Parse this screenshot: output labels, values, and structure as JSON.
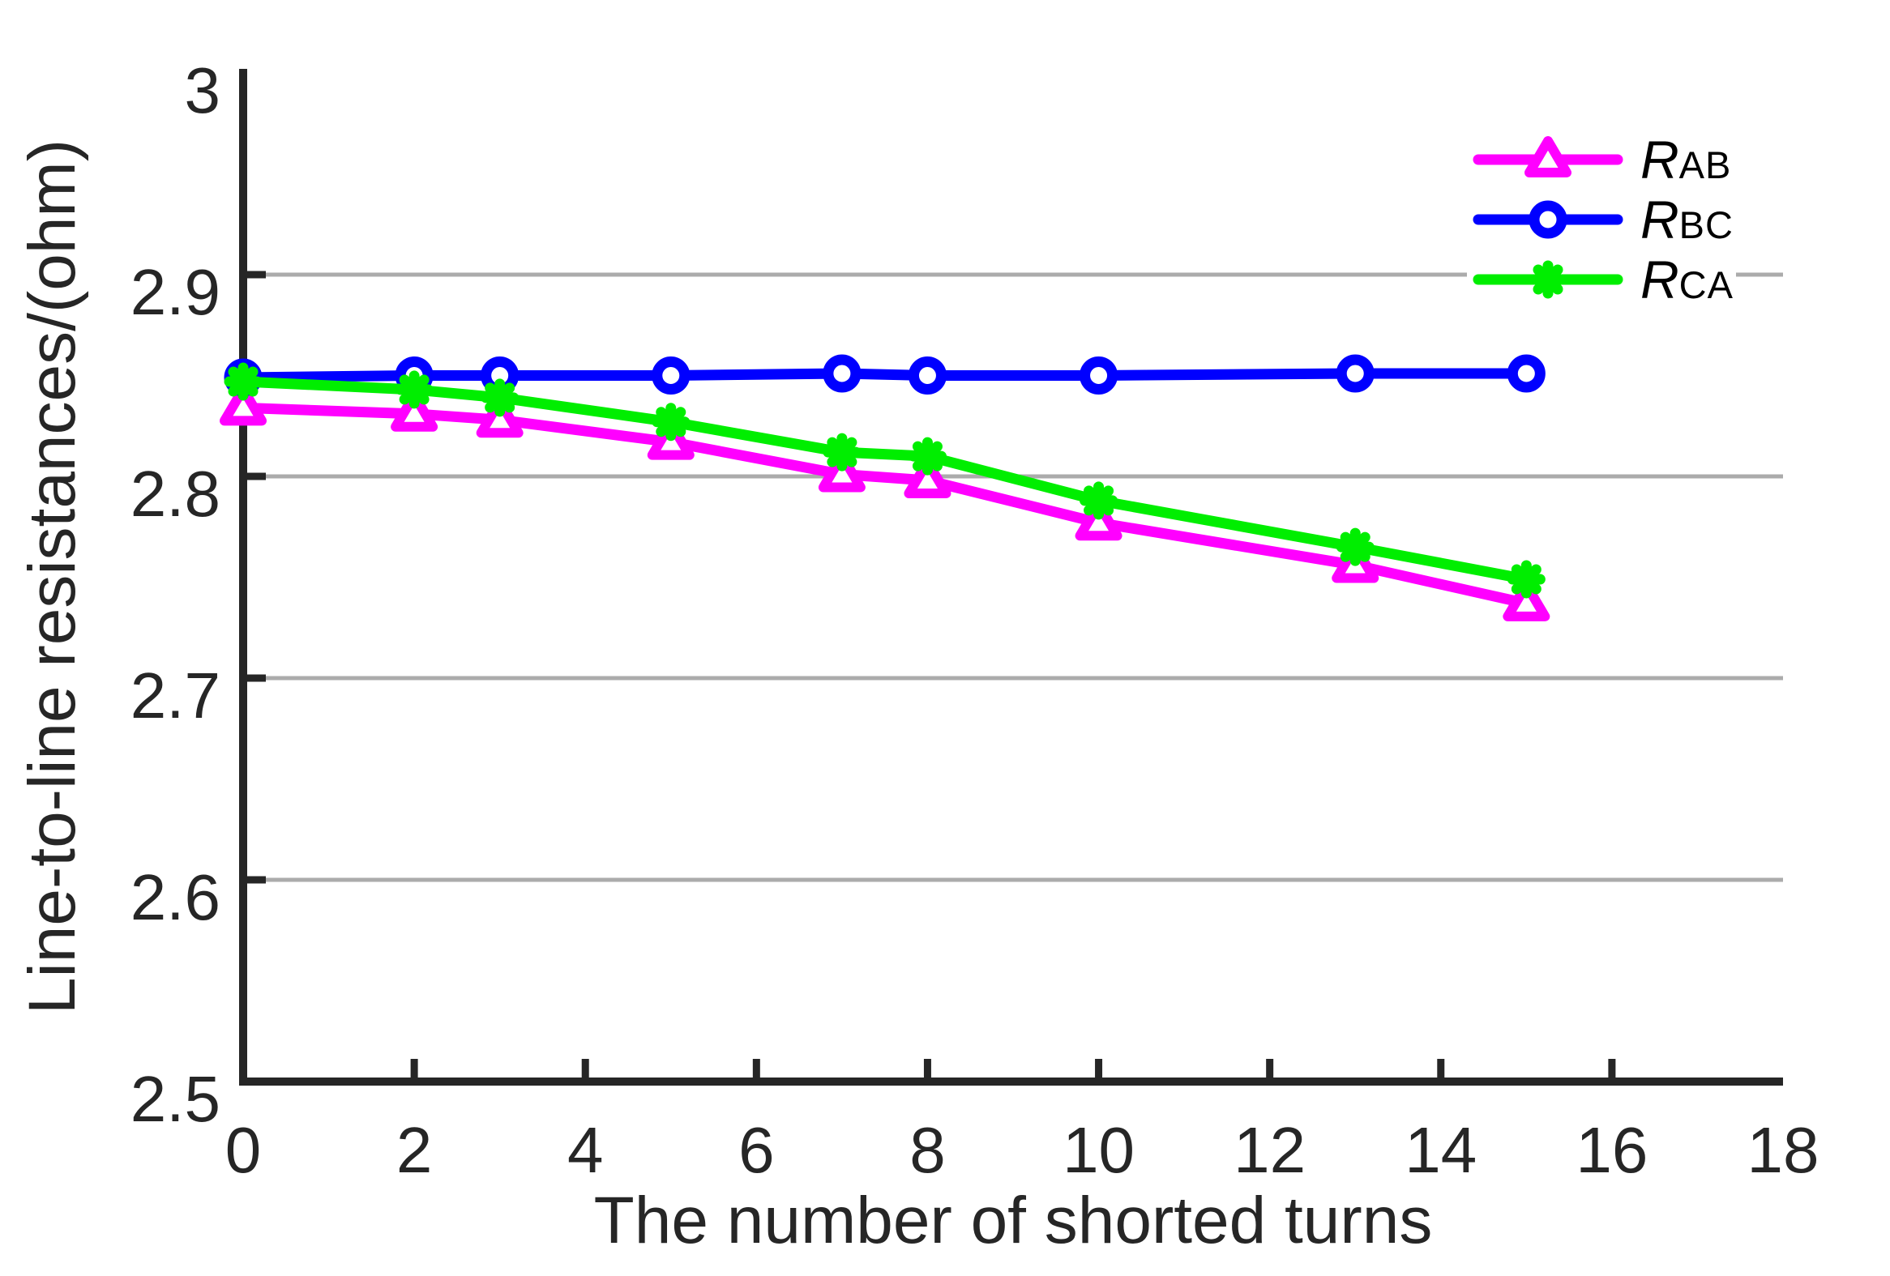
{
  "figure": {
    "background": "#ffffff",
    "axis_color": "#262626",
    "grid_color": "#ababab",
    "marker_fill": "#ffffff",
    "legend_text_color": "#000000"
  },
  "chart_data": {
    "type": "line",
    "title": "",
    "xlabel": "The number of shorted turns",
    "ylabel": "Line-to-line resistances/(ohm)",
    "xlim": [
      0,
      18
    ],
    "ylim": [
      2.5,
      3
    ],
    "x_ticks": [
      0,
      2,
      4,
      6,
      8,
      10,
      12,
      14,
      16,
      18
    ],
    "x_tick_labels": [
      "0",
      "2",
      "4",
      "6",
      "8",
      "10",
      "12",
      "14",
      "16",
      "18"
    ],
    "y_ticks": [
      2.5,
      2.6,
      2.7,
      2.8,
      2.9,
      3
    ],
    "y_tick_labels": [
      "2.5",
      "2.6",
      "2.7",
      "2.8",
      "2.9",
      "3"
    ],
    "grid": "horizontal",
    "legend_position": "top-right",
    "x": [
      0,
      2,
      3,
      5,
      7,
      8,
      10,
      13,
      15
    ],
    "series": [
      {
        "id": "rab",
        "label_main": "R",
        "label_sub": "AB",
        "color": "#ff00ff",
        "marker": "triangle-up",
        "values": [
          2.834,
          2.831,
          2.828,
          2.817,
          2.801,
          2.798,
          2.777,
          2.756,
          2.737
        ]
      },
      {
        "id": "rbc",
        "label_main": "R",
        "label_sub": "BC",
        "color": "#0000ff",
        "marker": "circle",
        "values": [
          2.849,
          2.85,
          2.85,
          2.85,
          2.851,
          2.85,
          2.85,
          2.851,
          2.851
        ]
      },
      {
        "id": "rca",
        "label_main": "R",
        "label_sub": "CA",
        "color": "#00ee00",
        "marker": "asterisk",
        "values": [
          2.847,
          2.843,
          2.839,
          2.827,
          2.812,
          2.81,
          2.788,
          2.765,
          2.749
        ]
      }
    ]
  }
}
